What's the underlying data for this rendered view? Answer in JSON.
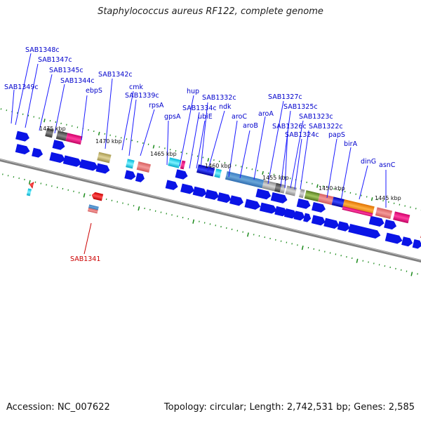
{
  "title": "Staphylococcus aureus RF122, complete genome",
  "footer": {
    "accession": "Accession: NC_007622",
    "topology": "Topology: circular; Length: 2,742,531 bp; Genes: 2,585"
  },
  "colors": {
    "cds": "#0a14e6",
    "label": "#0000cc",
    "highlight_label": "#cc0000",
    "tick": "#1a8a1a",
    "backbone": "#808080"
  },
  "scale_labels": [
    "1475 kbp",
    "1470 kbp",
    "1465 kbp",
    "1460 kbp",
    "1455 kbp",
    "1450 kbp",
    "1445 kbp"
  ],
  "gene_labels": [
    "SAB1348c",
    "SAB1347c",
    "SAB1345c",
    "SAB1344c",
    "SAB1349c",
    "ebpS",
    "SAB1342c",
    "cmk",
    "SAB1339c",
    "rpsA",
    "hup",
    "SAB1332c",
    "SAB1334c",
    "ndk",
    "gpsA",
    "ubiE",
    "aroC",
    "aroA",
    "SAB1327c",
    "SAB1325c",
    "aroB",
    "SAB1323c",
    "SAB1326c",
    "SAB1322c",
    "SAB1324c",
    "papS",
    "birA",
    "dinG",
    "asnC"
  ],
  "highlight_labels": [
    "SAB1341"
  ]
}
